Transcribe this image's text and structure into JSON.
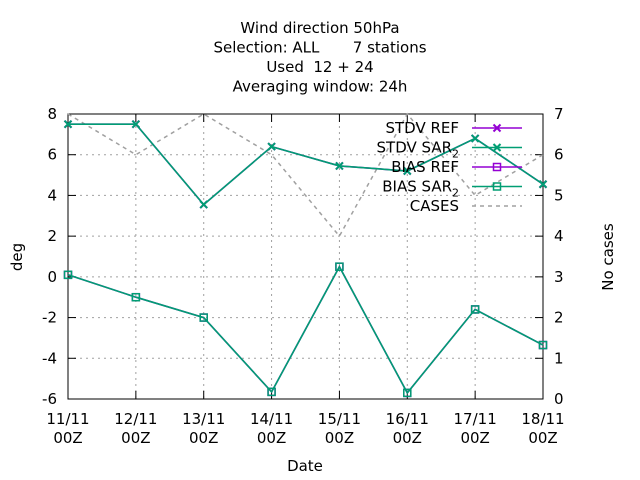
{
  "chart_data": {
    "type": "line",
    "title_lines": [
      "Wind direction 50hPa",
      "Selection: ALL       7 stations",
      "Used  12 + 24",
      "Averaging window: 24h"
    ],
    "xlabel": "Date",
    "ylabel": "deg",
    "y2label": "No cases",
    "categories": [
      [
        "11/11",
        "00Z"
      ],
      [
        "12/11",
        "00Z"
      ],
      [
        "13/11",
        "00Z"
      ],
      [
        "14/11",
        "00Z"
      ],
      [
        "15/11",
        "00Z"
      ],
      [
        "16/11",
        "00Z"
      ],
      [
        "17/11",
        "00Z"
      ],
      [
        "18/11",
        "00Z"
      ]
    ],
    "ylim": [
      -6,
      8
    ],
    "yticks": [
      -6,
      -4,
      -2,
      0,
      2,
      4,
      6,
      8
    ],
    "y2lim": [
      0,
      7
    ],
    "y2ticks": [
      0,
      1,
      2,
      3,
      4,
      5,
      6,
      7
    ],
    "grid": true,
    "legend_position": "top-right",
    "series": [
      {
        "name": "STDV REF",
        "axis": "y",
        "color": "#9400d3",
        "marker": "x",
        "values": [
          7.5,
          7.5,
          3.55,
          6.4,
          5.45,
          5.2,
          6.8,
          4.55
        ]
      },
      {
        "name": "STDV SAR",
        "name_sub": "2",
        "axis": "y",
        "color": "#009e73",
        "marker": "x",
        "values": [
          7.5,
          7.5,
          3.55,
          6.4,
          5.45,
          5.2,
          6.8,
          4.55
        ]
      },
      {
        "name": "BIAS REF",
        "axis": "y",
        "color": "#9400d3",
        "marker": "square",
        "values": [
          0.1,
          -1.0,
          -2.0,
          -5.65,
          0.5,
          -5.7,
          -1.6,
          -3.35
        ]
      },
      {
        "name": "BIAS SAR",
        "name_sub": "2",
        "axis": "y",
        "color": "#009e73",
        "marker": "square",
        "values": [
          0.1,
          -1.0,
          -2.0,
          -5.65,
          0.5,
          -5.7,
          -1.6,
          -3.35
        ]
      },
      {
        "name": "CASES",
        "axis": "y2",
        "color": "#a0a0a0",
        "marker": "none",
        "dashed": true,
        "values": [
          7,
          6,
          7,
          6,
          4,
          7,
          5,
          6
        ]
      }
    ]
  }
}
